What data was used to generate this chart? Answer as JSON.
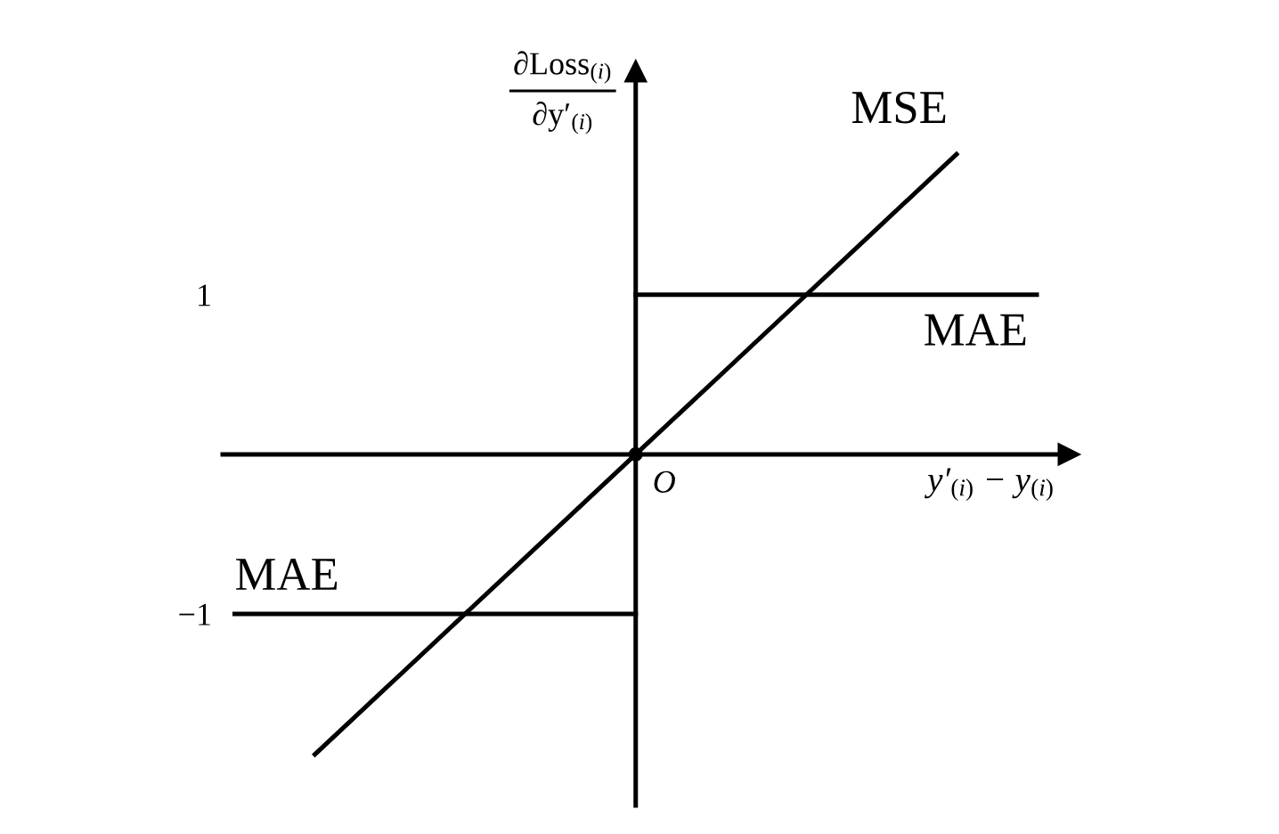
{
  "chart_data": {
    "type": "line",
    "xlabel": "y′$_{(i)}$ − y$_{(i)}$",
    "ylabel": "∂Loss$_{(i)}$\n∂y′$_{(i)}$",
    "categories": [
      null,
      null,
      null,
      null,
      null,
      null,
      null,
      null,
      null,
      null,
      null
    ],
    "ylim": [
      -2.2,
      2.4
    ],
    "yticks": [
      1,
      {
        "value": -1,
        "label": "−1"
      }
    ],
    "annotations": [
      "O"
    ],
    "series": [
      {
        "name": "MSE",
        "color": "#000000",
        "values": [
          null,
          -1.88,
          -1.41,
          -0.94,
          -0.47,
          0,
          0.47,
          0.94,
          1.41,
          1.88,
          null
        ]
      },
      {
        "name": "MAE",
        "color": "#000000",
        "values": [
          -1,
          -1,
          -1,
          -1,
          -1,
          -1,
          null,
          null,
          null,
          null,
          null
        ]
      },
      {
        "name": "MAE",
        "color": "#000000",
        "values": [
          null,
          null,
          null,
          null,
          null,
          1,
          1,
          1,
          1,
          1,
          1
        ]
      },
      {
        "type": "scatter",
        "color": "#000000",
        "marker": "circle",
        "values": [
          null,
          null,
          null,
          null,
          null,
          0,
          null,
          null,
          null,
          null,
          null
        ]
      }
    ]
  }
}
